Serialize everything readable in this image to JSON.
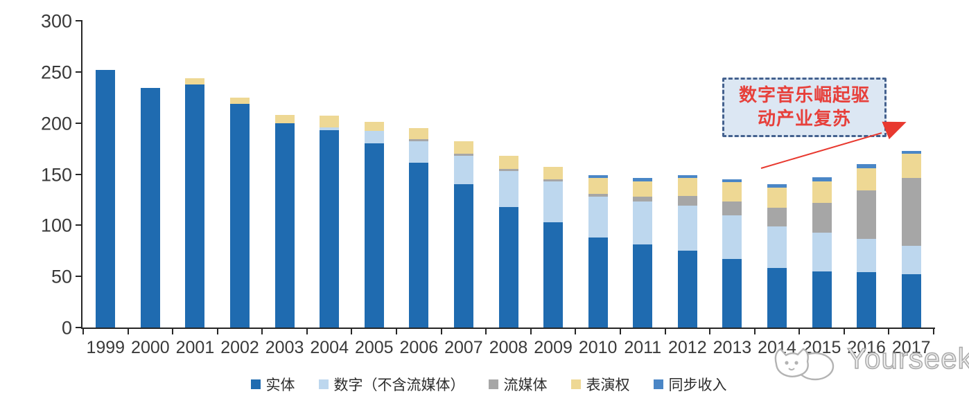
{
  "chart_data": {
    "type": "bar",
    "stacked": true,
    "title": "",
    "xlabel": "",
    "ylabel": "",
    "ylim": [
      0,
      300
    ],
    "yticks": [
      0,
      50,
      100,
      150,
      200,
      250,
      300
    ],
    "grid": false,
    "legend_position": "bottom",
    "categories": [
      "1999",
      "2000",
      "2001",
      "2002",
      "2003",
      "2004",
      "2005",
      "2006",
      "2007",
      "2008",
      "2009",
      "2010",
      "2011",
      "2012",
      "2013",
      "2014",
      "2015",
      "2016",
      "2017"
    ],
    "series": [
      {
        "key": "physical",
        "name": "实体",
        "color": "#1f6bb0",
        "values": [
          252,
          234,
          238,
          219,
          200,
          193,
          180,
          161,
          140,
          118,
          103,
          88,
          81,
          75,
          67,
          58,
          55,
          54,
          52
        ]
      },
      {
        "key": "digital",
        "name": "数字（不含流媒体）",
        "color": "#bdd7ee",
        "values": [
          0,
          0,
          0,
          0,
          0,
          3,
          12,
          21,
          28,
          35,
          40,
          40,
          42,
          44,
          43,
          41,
          38,
          33,
          28
        ]
      },
      {
        "key": "streaming",
        "name": "流媒体",
        "color": "#a6a6a6",
        "values": [
          0,
          0,
          0,
          0,
          0,
          0,
          0,
          2,
          2,
          2,
          2,
          3,
          5,
          10,
          13,
          18,
          29,
          47,
          66
        ]
      },
      {
        "key": "performance",
        "name": "表演权",
        "color": "#eed894",
        "values": [
          0,
          0,
          6,
          6,
          8,
          11,
          9,
          11,
          12,
          13,
          12,
          15,
          15,
          17,
          19,
          20,
          21,
          22,
          24
        ]
      },
      {
        "key": "sync",
        "name": "同步收入",
        "color": "#4a86c6",
        "values": [
          0,
          0,
          0,
          0,
          0,
          0,
          0,
          0,
          0,
          0,
          0,
          3,
          3,
          3,
          3,
          3,
          4,
          4,
          3
        ]
      }
    ]
  },
  "annotation": {
    "lines": [
      "数字音乐崛起驱",
      "动产业复苏"
    ],
    "text_color": "#e7403b",
    "box_fill": "#dce7f3",
    "box_border": "#44618e",
    "arrow_color": "#e8392f"
  },
  "watermark": {
    "text": "Yourseeker",
    "color": "#a9a9a9"
  },
  "colors": {
    "axis": "#262626",
    "tick_text": "#3a3a3a"
  }
}
